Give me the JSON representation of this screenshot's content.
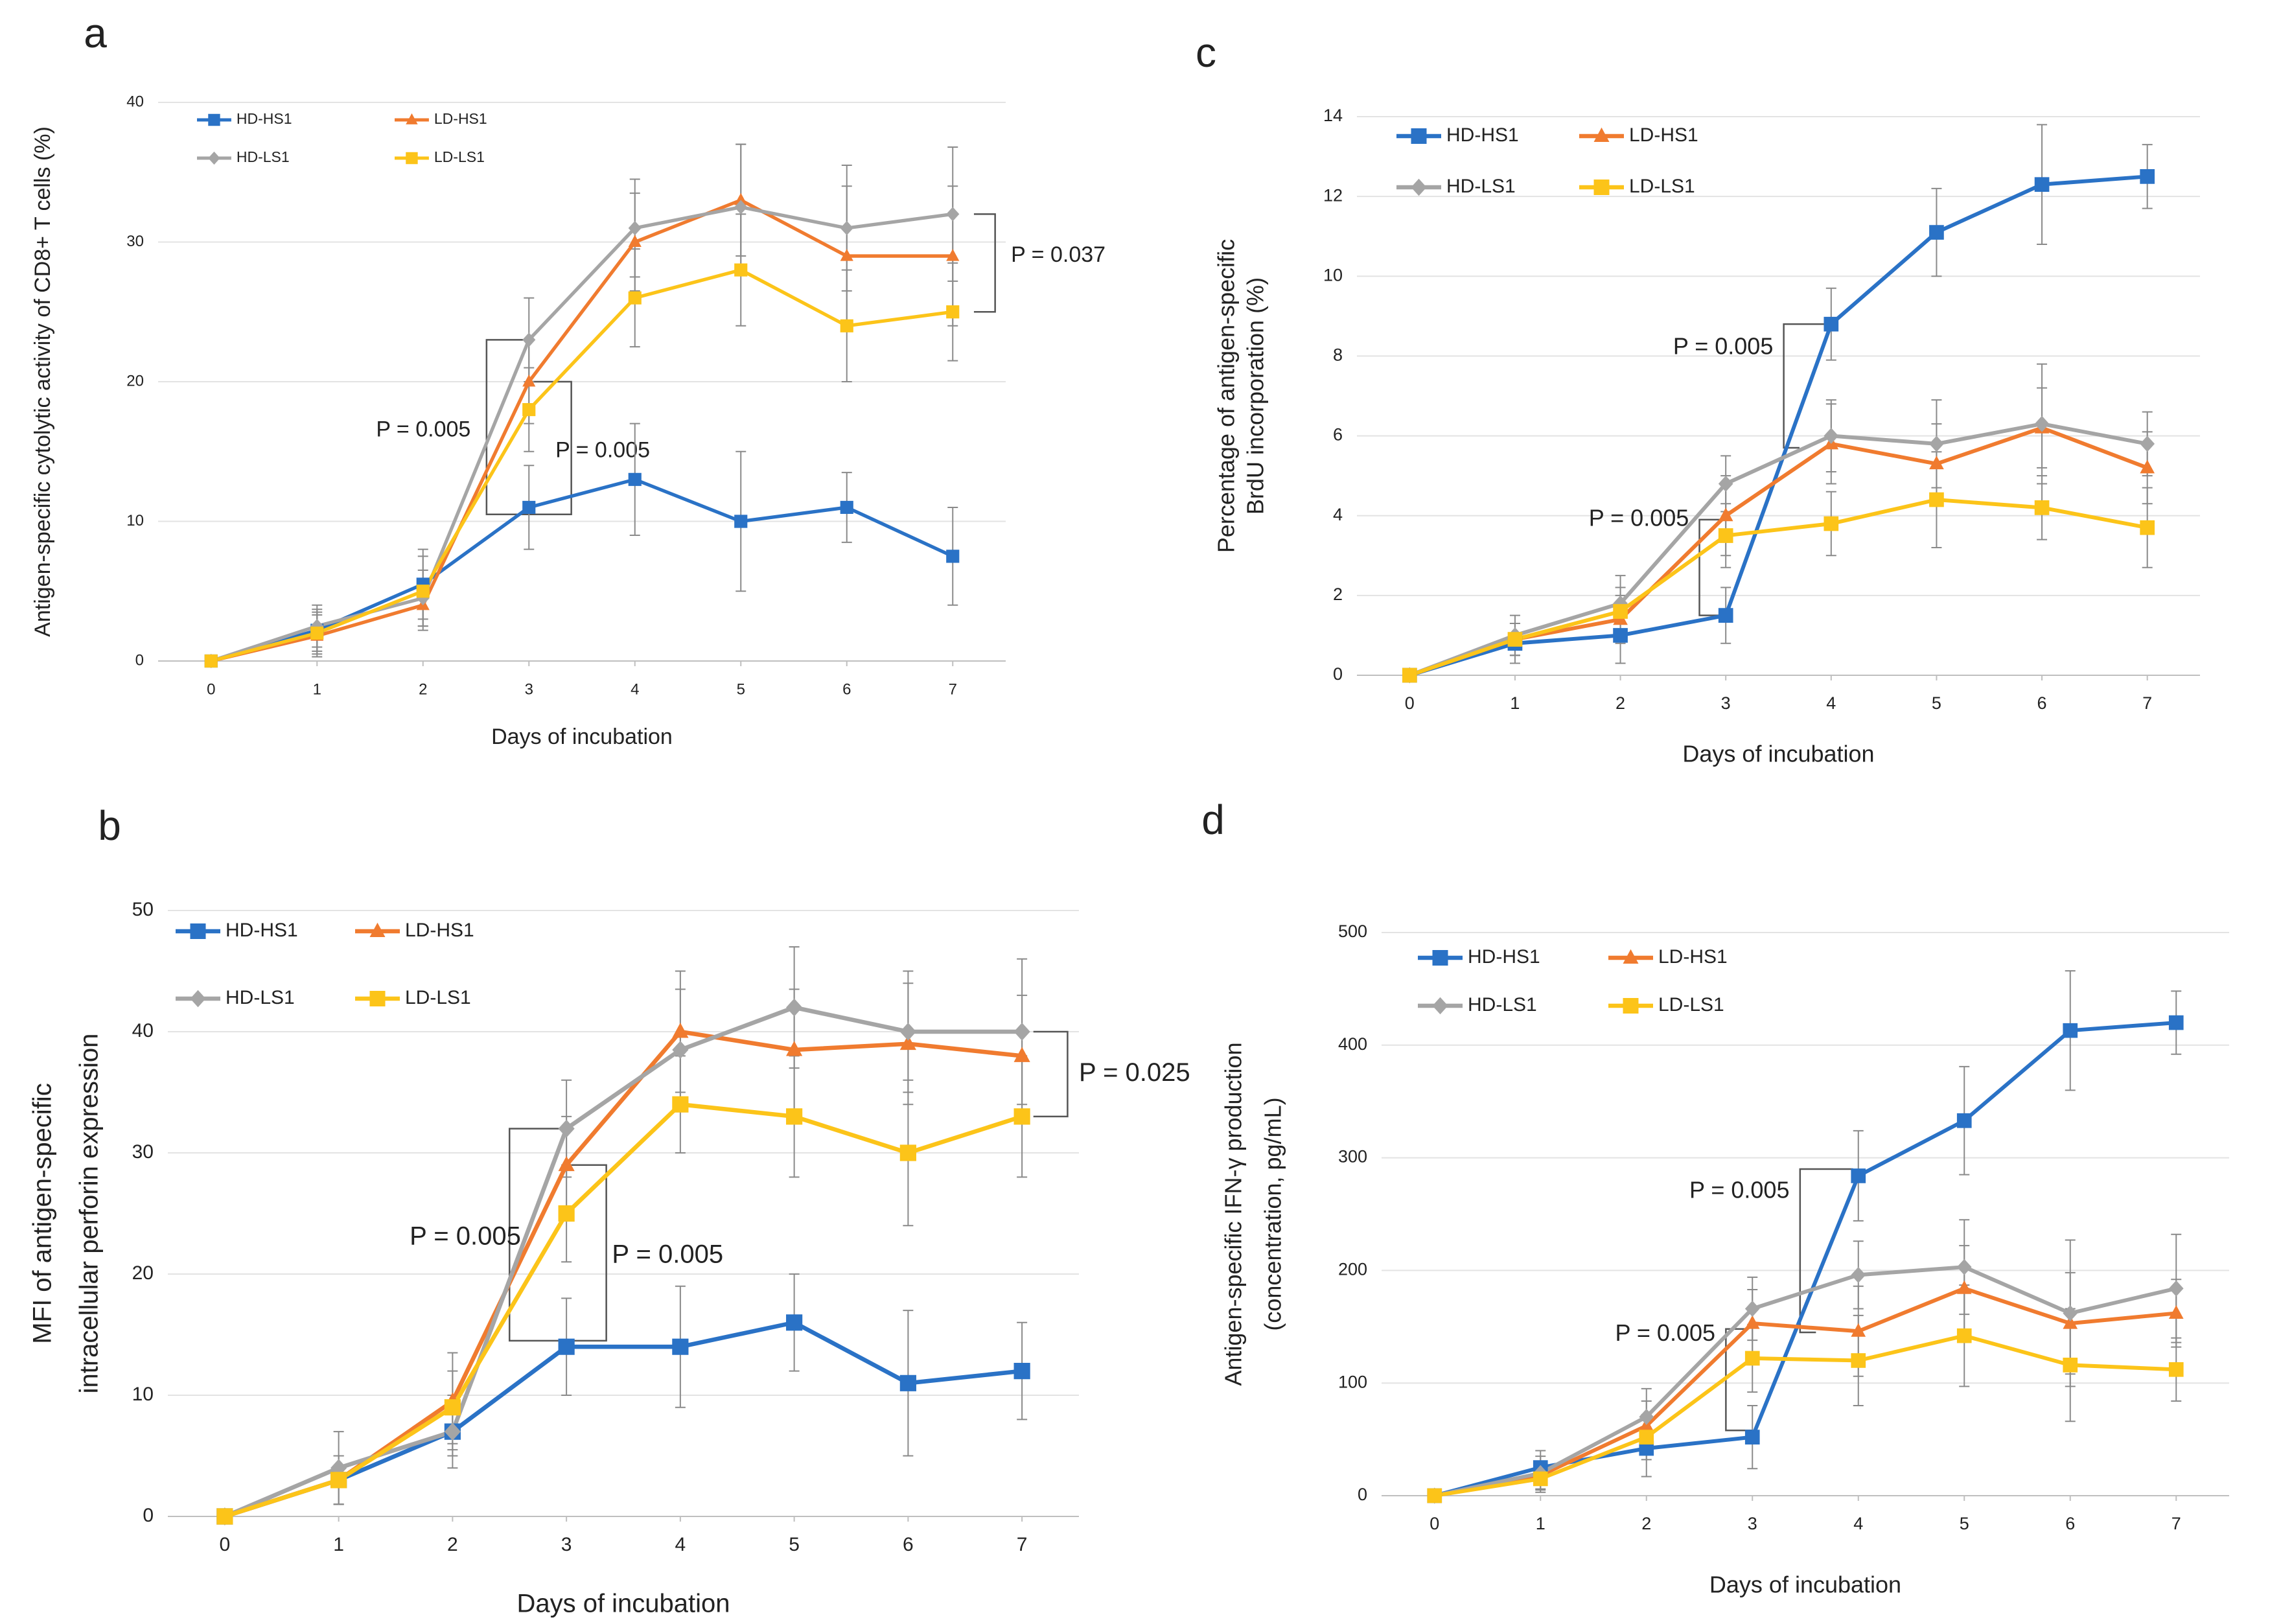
{
  "chart_data": [
    {
      "type": "line",
      "panel": "a",
      "ylabel": [
        "Antigen-specific cytolytic activity of CD8+ T cells (%)"
      ],
      "xlabel": "Days of incubation",
      "x": [
        0,
        1,
        2,
        3,
        4,
        5,
        6,
        7
      ],
      "xlim": [
        -0.5,
        7.5
      ],
      "xticks": [
        0,
        1,
        2,
        3,
        4,
        5,
        6,
        7
      ],
      "ylim": [
        0,
        40
      ],
      "yticks": [
        0,
        10,
        20,
        30,
        40
      ],
      "grid": true,
      "legend": "top-left",
      "series": [
        {
          "name": "HD-HS1",
          "color": "#2a72c6",
          "marker": "square",
          "values": [
            0,
            2.2,
            5.5,
            11,
            13,
            10,
            11,
            7.5
          ],
          "errors": [
            0,
            1.5,
            2.5,
            3,
            4,
            5,
            2.5,
            3.5
          ]
        },
        {
          "name": "LD-HS1",
          "color": "#f07b2f",
          "marker": "triangle",
          "values": [
            0,
            1.8,
            4,
            20,
            30,
            33,
            29,
            29
          ],
          "errors": [
            0,
            1.5,
            1.8,
            3,
            3.5,
            4,
            5,
            5
          ]
        },
        {
          "name": "HD-LS1",
          "color": "#a5a5a5",
          "marker": "diamond",
          "values": [
            0,
            2.5,
            4.5,
            23,
            31,
            32.5,
            31,
            32
          ],
          "errors": [
            0,
            1.5,
            2,
            3,
            3.5,
            4.5,
            4.5,
            4.8
          ]
        },
        {
          "name": "LD-LS1",
          "color": "#fcc419",
          "marker": "square",
          "values": [
            0,
            2,
            5,
            18,
            26,
            28,
            24,
            25
          ],
          "errors": [
            0,
            1.5,
            2.5,
            3,
            3.5,
            4,
            4,
            3.5
          ]
        }
      ],
      "annotations": [
        "P = 0.005",
        "P = 0.005",
        "P = 0.037"
      ]
    },
    {
      "type": "line",
      "panel": "b",
      "ylabel": [
        "MFI of antigen-specific",
        "intracellular perforin expression"
      ],
      "xlabel": "Days of incubation",
      "x": [
        0,
        1,
        2,
        3,
        4,
        5,
        6,
        7
      ],
      "xlim": [
        -0.5,
        7.5
      ],
      "xticks": [
        0,
        1,
        2,
        3,
        4,
        5,
        6,
        7
      ],
      "ylim": [
        0,
        50
      ],
      "yticks": [
        0,
        10,
        20,
        30,
        40,
        50
      ],
      "grid": true,
      "legend": "top-left",
      "series": [
        {
          "name": "HD-HS1",
          "color": "#2a72c6",
          "marker": "square",
          "values": [
            0,
            3,
            7,
            14,
            14,
            16,
            11,
            12
          ],
          "errors": [
            0,
            2,
            2,
            4,
            5,
            4,
            6,
            4
          ]
        },
        {
          "name": "LD-HS1",
          "color": "#f07b2f",
          "marker": "triangle",
          "values": [
            0,
            3,
            9.5,
            29,
            40,
            38.5,
            39,
            38
          ],
          "errors": [
            0,
            2,
            4,
            4,
            5,
            5,
            5,
            5
          ]
        },
        {
          "name": "HD-LS1",
          "color": "#a5a5a5",
          "marker": "diamond",
          "values": [
            0,
            4,
            7,
            32,
            38.5,
            42,
            40,
            40
          ],
          "errors": [
            0,
            3,
            3,
            4,
            5,
            5,
            5,
            6
          ]
        },
        {
          "name": "LD-LS1",
          "color": "#fcc419",
          "marker": "square",
          "values": [
            0,
            3,
            9,
            25,
            34,
            33,
            30,
            33
          ],
          "errors": [
            0,
            2,
            3,
            4,
            4,
            5,
            6,
            5
          ]
        }
      ],
      "annotations": [
        "P = 0.005",
        "P = 0.005",
        "P = 0.025"
      ]
    },
    {
      "type": "line",
      "panel": "c",
      "ylabel": [
        "Percentage of antigen-specific",
        "BrdU incorporation (%)"
      ],
      "xlabel": "Days of incubation",
      "x": [
        0,
        1,
        2,
        3,
        4,
        5,
        6,
        7
      ],
      "xlim": [
        -0.5,
        7.5
      ],
      "xticks": [
        0,
        1,
        2,
        3,
        4,
        5,
        6,
        7
      ],
      "ylim": [
        0,
        14
      ],
      "yticks": [
        0,
        2,
        4,
        6,
        8,
        10,
        12,
        14
      ],
      "grid": true,
      "legend": "top-left",
      "series": [
        {
          "name": "HD-HS1",
          "color": "#2a72c6",
          "marker": "square",
          "values": [
            0,
            0.8,
            1,
            1.5,
            8.8,
            11.1,
            12.3,
            12.5
          ],
          "errors": [
            0,
            0.5,
            0.7,
            0.7,
            0.9,
            1.1,
            1.5,
            0.8
          ]
        },
        {
          "name": "LD-HS1",
          "color": "#f07b2f",
          "marker": "triangle",
          "values": [
            0,
            0.9,
            1.4,
            4,
            5.8,
            5.3,
            6.2,
            5.2
          ],
          "errors": [
            0,
            0.4,
            0.6,
            1,
            1,
            1,
            1,
            0.9
          ]
        },
        {
          "name": "HD-LS1",
          "color": "#a5a5a5",
          "marker": "diamond",
          "values": [
            0,
            1,
            1.8,
            4.8,
            6,
            5.8,
            6.3,
            5.8
          ],
          "errors": [
            0,
            0.5,
            0.7,
            0.7,
            0.9,
            1.1,
            1.5,
            0.8
          ]
        },
        {
          "name": "LD-LS1",
          "color": "#fcc419",
          "marker": "square",
          "values": [
            0,
            0.9,
            1.6,
            3.5,
            3.8,
            4.4,
            4.2,
            3.7
          ],
          "errors": [
            0,
            0.4,
            0.6,
            0.8,
            0.8,
            1.2,
            0.8,
            1
          ]
        }
      ],
      "annotations": [
        "P = 0.005",
        "P = 0.005"
      ]
    },
    {
      "type": "line",
      "panel": "d",
      "ylabel": [
        "Antigen-specific IFN-γ production",
        "(concentration, pg/mL)"
      ],
      "xlabel": "Days of incubation",
      "x": [
        0,
        1,
        2,
        3,
        4,
        5,
        6,
        7
      ],
      "xlim": [
        -0.5,
        7.5
      ],
      "xticks": [
        0,
        1,
        2,
        3,
        4,
        5,
        6,
        7
      ],
      "ylim": [
        0,
        500
      ],
      "yticks": [
        0,
        100,
        200,
        300,
        400,
        500
      ],
      "grid": true,
      "legend": "top-left",
      "series": [
        {
          "name": "HD-HS1",
          "color": "#2a72c6",
          "marker": "square",
          "values": [
            0,
            25,
            42,
            52,
            284,
            333,
            413,
            420
          ],
          "errors": [
            0,
            15,
            25,
            28,
            40,
            48,
            53,
            28
          ]
        },
        {
          "name": "LD-HS1",
          "color": "#f07b2f",
          "marker": "triangle",
          "values": [
            0,
            18,
            62,
            153,
            146,
            184,
            153,
            162
          ],
          "errors": [
            0,
            12,
            22,
            30,
            40,
            38,
            45,
            30
          ]
        },
        {
          "name": "HD-LS1",
          "color": "#a5a5a5",
          "marker": "diamond",
          "values": [
            0,
            20,
            70,
            166,
            196,
            203,
            162,
            184
          ],
          "errors": [
            0,
            15,
            25,
            28,
            30,
            42,
            65,
            48
          ]
        },
        {
          "name": "LD-LS1",
          "color": "#fcc419",
          "marker": "square",
          "values": [
            0,
            15,
            52,
            122,
            120,
            142,
            116,
            112
          ],
          "errors": [
            0,
            12,
            20,
            30,
            40,
            45,
            50,
            28
          ]
        }
      ],
      "annotations": [
        "P = 0.005",
        "P = 0.005"
      ]
    }
  ]
}
